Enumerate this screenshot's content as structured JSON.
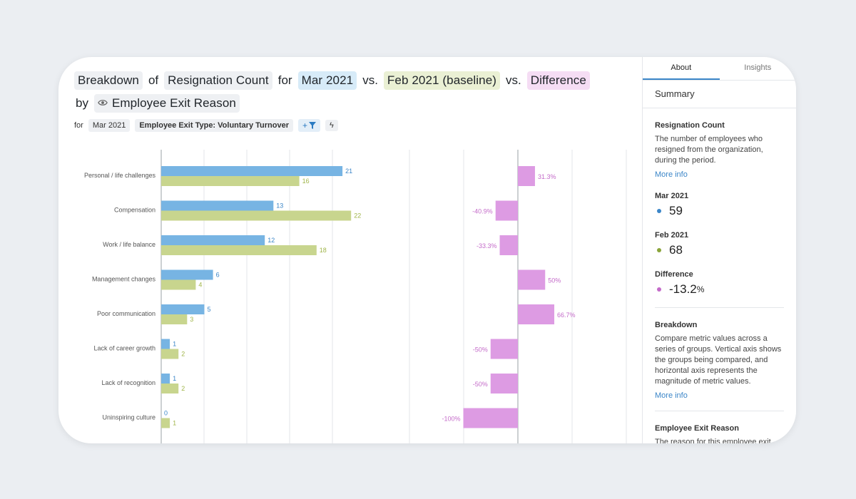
{
  "title": {
    "breakdown": "Breakdown",
    "of": "of",
    "metric": "Resignation Count",
    "for": "for",
    "current": "Mar 2021",
    "vs1": "vs.",
    "baseline": "Feb 2021 (baseline)",
    "vs2": "vs.",
    "difference": "Difference",
    "by": "by",
    "dimension": "Employee Exit Reason"
  },
  "filters": {
    "for_label": "for",
    "period": "Mar 2021",
    "exit_type": "Employee Exit Type: Voluntary Turnover",
    "add_filter_plus": "+",
    "bolt": "ϟ"
  },
  "colors": {
    "current": "#77b4e3",
    "baseline": "#c8d58e",
    "difference": "#dd9be3",
    "current_label": "#3b86c8",
    "baseline_label": "#a0b54a",
    "difference_label": "#c46bc9"
  },
  "chart_data": {
    "type": "bar",
    "categories": [
      "Personal / life challenges",
      "Compensation",
      "Work / life balance",
      "Management changes",
      "Poor communication",
      "Lack of career growth",
      "Lack of recognition",
      "Uninspiring culture"
    ],
    "series": [
      {
        "name": "Mar 2021",
        "values": [
          21,
          13,
          12,
          6,
          5,
          1,
          1,
          0
        ]
      },
      {
        "name": "Feb 2021",
        "values": [
          16,
          22,
          18,
          4,
          3,
          2,
          2,
          1
        ]
      }
    ],
    "difference": {
      "values": [
        31.3,
        -40.9,
        -33.3,
        50,
        66.7,
        -50,
        -50,
        -100
      ],
      "labels": [
        "31.3%",
        "-40.9%",
        "-33.3%",
        "50%",
        "66.7%",
        "-50%",
        "-50%",
        "-100%"
      ]
    },
    "xlim": [
      0,
      26
    ],
    "diff_xlim": [
      -100,
      150
    ]
  },
  "panel": {
    "tabs": [
      "About",
      "Insights"
    ],
    "title": "Summary",
    "metric_heading": "Resignation Count",
    "metric_desc": "The number of employees who resigned from the organization, during the period.",
    "more_info_1": "More info",
    "current_label": "Mar 2021",
    "current_value": "59",
    "baseline_label": "Feb 2021",
    "baseline_value": "68",
    "difference_label": "Difference",
    "difference_value": "-13.2",
    "difference_unit": "%",
    "breakdown_heading": "Breakdown",
    "breakdown_desc": "Compare metric values across a series of groups. Vertical axis shows the groups being compared, and horizontal axis represents the magnitude of metric values.",
    "more_info_2": "More info",
    "dimension_heading": "Employee Exit Reason",
    "dimension_desc": "The reason for this employee exit"
  }
}
